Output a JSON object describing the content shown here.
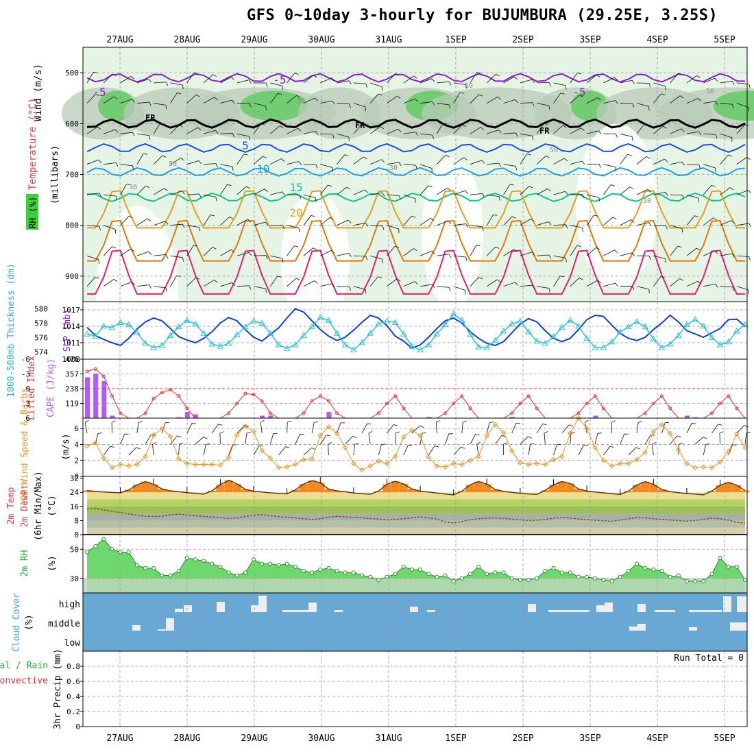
{
  "title": "GFS 0~10day 3-hourly for BUJUMBURA (29.25E, 3.25S)",
  "chart_data": {
    "type": "meteogram",
    "time_axis": {
      "labels": [
        "27AUG",
        "28AUG",
        "29AUG",
        "30AUG",
        "31AUG",
        "1SEP",
        "2SEP",
        "3SEP",
        "4SEP",
        "5SEP"
      ],
      "start_day_offset": -0.5,
      "end_day_offset": 9.1
    },
    "panels": {
      "upper": {
        "ylabel_wind": "Wind (m/s)",
        "ylabel_temp": "Temperature (°C)",
        "ylabel_rh": "RH (%)",
        "ylabel_pressure": "(millibars)",
        "pressure_ticks": [
          500,
          600,
          700,
          800,
          900
        ],
        "pressure_range": [
          450,
          950
        ],
        "isotherm_labels": [
          "-5",
          "-5",
          "-5",
          "5",
          "10",
          "15",
          "20"
        ],
        "freezing_label": "FR",
        "rh_contour_labels": [
          "30",
          "50",
          "50",
          "30",
          "50",
          "30",
          "30",
          "50"
        ],
        "isotherms": [
          {
            "t": -5,
            "color": "#8a20c8",
            "base": 510
          },
          {
            "t": 0,
            "color": "#000000",
            "base": 600
          },
          {
            "t": 5,
            "color": "#1a4fd6",
            "base": 648
          },
          {
            "t": 10,
            "color": "#1ea0e6",
            "base": 695
          },
          {
            "t": 15,
            "color": "#10c090",
            "base": 745
          },
          {
            "t": 20,
            "color": "#e0a020",
            "base": 805
          },
          {
            "t": 25,
            "color": "#e07810",
            "base": 870
          },
          {
            "t": 30,
            "color": "#e02070",
            "base": 935
          }
        ]
      },
      "slp": {
        "ylabel_left": "1000-500mb Thickness (dm)",
        "ylabel_right": "SLP (mb)",
        "thickness_ticks": [
          574,
          576,
          578,
          580
        ],
        "slp_ticks": [
          1008,
          1011,
          1014,
          1017
        ],
        "slp_range": [
          1008,
          1018.5
        ],
        "slp_values": [
          1013.8,
          1012.3,
          1011.6,
          1011.0,
          1010.5,
          1011.8,
          1013.5,
          1014.8,
          1015.5,
          1015.0,
          1013.6,
          1012.1,
          1011.5,
          1011.0,
          1011.8,
          1013.0,
          1014.6,
          1015.6,
          1015.0,
          1013.4,
          1012.0,
          1011.3,
          1012.5,
          1013.7,
          1015.5,
          1017.2,
          1016.6,
          1015.0,
          1013.4,
          1012.2,
          1011.4,
          1012.0,
          1013.3,
          1014.7,
          1016.0,
          1015.5,
          1014.1,
          1012.2,
          1011.3,
          1010.0,
          1010.6,
          1012.0,
          1013.6,
          1015.0,
          1015.5,
          1014.6,
          1013.0,
          1011.8,
          1010.9,
          1010.5,
          1011.2,
          1012.8,
          1014.4,
          1015.4,
          1014.8,
          1013.2,
          1011.8,
          1011.2,
          1011.8,
          1013.4,
          1015.2,
          1016.0,
          1015.8,
          1014.2,
          1012.7,
          1011.8,
          1011.4,
          1012.0,
          1013.4,
          1014.6,
          1016.0,
          1014.8,
          1013.2,
          1012.6,
          1012.0,
          1012.8,
          1013.6,
          1015.2,
          1015.3,
          1014.0
        ],
        "thickness_values": [
          576.5,
          576.2,
          577.6,
          577.4,
          578.1,
          577.8,
          576.7,
          575.2,
          574.6,
          574.9,
          576.3,
          577.5,
          578.4,
          577.9,
          576.6,
          575.1,
          574.8,
          575.2,
          576.4,
          577.5,
          578.3,
          578.0,
          576.6,
          575.0,
          574.5,
          575.0,
          576.3,
          577.5,
          578.8,
          578.4,
          576.6,
          575.0,
          574.3,
          575.3,
          576.6,
          577.9,
          578.3,
          578.1,
          576.5,
          574.8,
          574.3,
          575.0,
          576.5,
          577.8,
          579.3,
          578.4,
          576.4,
          574.7,
          574.6,
          575.6,
          576.9,
          577.9,
          578.3,
          576.8,
          575.5,
          575.2,
          576.1,
          577.4,
          578.4,
          577.6,
          575.9,
          574.6,
          574.6,
          575.4,
          576.8,
          577.5,
          578.2,
          577.5,
          575.8,
          574.6,
          575.1,
          576.3,
          577.8,
          578.5,
          577.6,
          576.0,
          575.0,
          575.4,
          576.9,
          577.8
        ]
      },
      "cape": {
        "ylabel_left": "Lifted Index",
        "ylabel_right": "CAPE (J/kg)",
        "li_ticks": [
          "-6",
          "-3",
          "0",
          "3",
          "6"
        ],
        "cape_ticks": [
          119,
          238,
          357,
          476
        ],
        "cape_range": [
          0,
          476
        ],
        "cape_values": [
          330,
          360,
          300,
          20,
          0,
          0,
          0,
          0,
          0,
          0,
          0,
          8,
          50,
          30,
          0,
          0,
          0,
          0,
          0,
          0,
          0,
          20,
          20,
          0,
          0,
          0,
          0,
          0,
          0,
          50,
          0,
          0,
          0,
          0,
          0,
          0,
          0,
          0,
          0,
          0,
          0,
          10,
          0,
          0,
          0,
          0,
          0,
          0,
          0,
          0,
          0,
          10,
          0,
          0,
          0,
          0,
          0,
          0,
          0,
          0,
          0,
          20,
          0,
          0,
          0,
          0,
          0,
          0,
          0,
          0,
          0,
          0,
          20,
          8,
          0,
          0,
          0,
          0,
          0,
          0
        ],
        "li_values": [
          -3.5,
          -4,
          -2.5,
          1.5,
          5,
          6,
          6,
          5,
          2,
          0.8,
          0.2,
          1.5,
          4,
          6,
          6,
          6,
          6,
          5,
          3,
          1,
          1.2,
          2.5,
          5,
          6,
          6,
          6,
          5,
          2.5,
          1.5,
          2.5,
          5,
          6,
          6,
          6,
          6,
          5,
          3,
          1.5,
          4,
          6,
          6,
          6,
          6,
          5,
          3,
          1.5,
          4,
          6,
          6,
          6,
          6,
          5,
          3,
          1.5,
          4,
          6,
          6,
          6,
          6,
          5,
          3,
          1.5,
          4,
          6,
          6,
          6,
          6,
          5,
          3,
          1.5,
          4,
          6,
          6,
          6,
          6,
          5,
          3,
          1.5,
          4,
          6
        ]
      },
      "wind10m": {
        "ylabel": "10m Wind Speed & Barbs",
        "units": "(m/s)",
        "ticks": [
          0,
          2,
          4,
          6
        ],
        "range": [
          0,
          7.3
        ],
        "speed_values": [
          3.8,
          4.2,
          2.3,
          1.1,
          1.5,
          1.3,
          1.5,
          2.5,
          5.2,
          6.0,
          5.0,
          2.2,
          1.6,
          1.5,
          1.5,
          1.5,
          1.4,
          2.4,
          5.2,
          6.3,
          5.6,
          3.2,
          2.3,
          1.1,
          1.2,
          1.5,
          2.1,
          2.2,
          5.1,
          6.2,
          5.4,
          3.6,
          1.6,
          0.8,
          1.3,
          1.9,
          1.6,
          2.5,
          4.9,
          5.8,
          5.1,
          2.4,
          1.3,
          1.2,
          1.6,
          1.5,
          2.0,
          2.5,
          5.1,
          6.5,
          5.5,
          3.2,
          1.7,
          1.5,
          1.6,
          1.5,
          2.1,
          2.5,
          5.4,
          7.3,
          6.0,
          3.6,
          2.0,
          1.3,
          1.6,
          1.6,
          2.1,
          3.0,
          5.6,
          6.5,
          5.4,
          3.3,
          1.6,
          1.1,
          1.2,
          1.1,
          1.8,
          3.1,
          5.3,
          3.6
        ]
      },
      "temp2m": {
        "ylabel_1": "2m Temp",
        "ylabel_2": "2m DewPt",
        "ylabel_3": "(6hr Min/Max)",
        "units": "(°C)",
        "ticks": [
          0,
          8,
          16,
          24,
          32
        ],
        "range": [
          0,
          33
        ],
        "temp_values": [
          25.0,
          24.5,
          24.2,
          23.9,
          23.7,
          25.3,
          28.2,
          30.0,
          28.5,
          25.9,
          24.8,
          24.4,
          23.8,
          23.4,
          23.0,
          24.8,
          28.3,
          30.8,
          28.7,
          25.7,
          24.6,
          24.2,
          23.7,
          23.4,
          23.1,
          25.3,
          28.7,
          30.6,
          29.4,
          25.8,
          24.8,
          24.3,
          23.6,
          23.2,
          22.9,
          24.7,
          28.5,
          30.2,
          28.7,
          25.9,
          24.6,
          24.2,
          23.6,
          23.0,
          22.5,
          24.6,
          28.2,
          30.1,
          28.6,
          25.6,
          24.5,
          24.0,
          23.4,
          23.0,
          22.8,
          25.1,
          28.2,
          30.1,
          29.0,
          25.9,
          24.7,
          24.2,
          23.7,
          23.2,
          22.8,
          24.7,
          28.1,
          30.0,
          28.4,
          25.6,
          24.4,
          23.8,
          23.3,
          23.0,
          22.6,
          24.7,
          28.0,
          29.6,
          28.0,
          25.0
        ],
        "dewpt_values": [
          14.5,
          15.0,
          14.0,
          13.2,
          12.5,
          11.8,
          11.0,
          10.5,
          10.2,
          10.5,
          11.2,
          11.6,
          11.2,
          10.7,
          10.3,
          10.0,
          9.6,
          9.2,
          9.5,
          10.3,
          11.0,
          11.3,
          10.7,
          10.2,
          9.8,
          9.5,
          9.0,
          8.6,
          9.0,
          9.9,
          10.4,
          10.1,
          9.8,
          9.5,
          9.1,
          8.8,
          8.4,
          8.6,
          9.0,
          9.6,
          10.0,
          9.6,
          8.8,
          7.2,
          6.6,
          7.4,
          8.5,
          9.0,
          9.3,
          9.5,
          9.2,
          8.8,
          8.4,
          8.0,
          8.2,
          8.6,
          9.3,
          9.8,
          9.4,
          8.9,
          8.5,
          8.2,
          7.9,
          7.6,
          8.2,
          9.0,
          9.7,
          9.5,
          9.0,
          8.6,
          8.3,
          8.0,
          7.7,
          8.0,
          8.7,
          9.4,
          9.0,
          8.2,
          7.0,
          6.6
        ]
      },
      "rh2m": {
        "ylabel": "2m RH",
        "units": "(%)",
        "ticks": [
          30,
          50
        ],
        "range": [
          20,
          60
        ],
        "values": [
          48,
          52,
          57,
          50,
          48,
          48,
          39,
          37,
          37,
          32,
          32,
          35,
          44,
          43,
          42,
          40,
          38,
          34,
          32,
          34,
          43,
          40,
          40,
          39,
          40,
          38,
          35,
          34,
          36,
          37,
          35,
          34,
          34,
          32,
          31,
          29,
          31,
          33,
          38,
          36,
          36,
          33,
          31,
          32,
          28,
          30,
          33,
          38,
          33,
          34,
          34,
          30,
          29,
          29,
          30,
          35,
          37,
          34,
          34,
          31,
          31,
          30,
          29,
          28,
          31,
          35,
          40,
          37,
          36,
          35,
          31,
          32,
          28,
          28,
          28,
          33,
          44,
          38,
          38,
          29
        ]
      },
      "cloud": {
        "ylabel": "Cloud Cover",
        "units": "(%)",
        "levels": [
          "high",
          "middle",
          "low"
        ]
      },
      "precip": {
        "ylabel_1": "Total / Rain",
        "ylabel_2": "Convective",
        "ylabel_3": "3hr Precip (mm)",
        "ticks": [
          "0",
          "0.2",
          "0.4",
          "0.6",
          "0.8"
        ],
        "range": [
          0,
          1.0
        ],
        "run_total_label": "Run Total = 0"
      }
    }
  },
  "colors": {
    "rh_light": "#e6f4e6",
    "rh_mid": "#b8cbb8",
    "rh_green": "#5ecb5e",
    "slp_line": "#1040cc",
    "thickness_line": "#30c0d0",
    "cape_bar": "#b060f0",
    "li_line": "#e03030",
    "wind_line": "#e89020",
    "temp_fill": "#f08a20",
    "rh2m_fill": "#6ed86e",
    "cloud_blue": "#6aa8d4"
  }
}
